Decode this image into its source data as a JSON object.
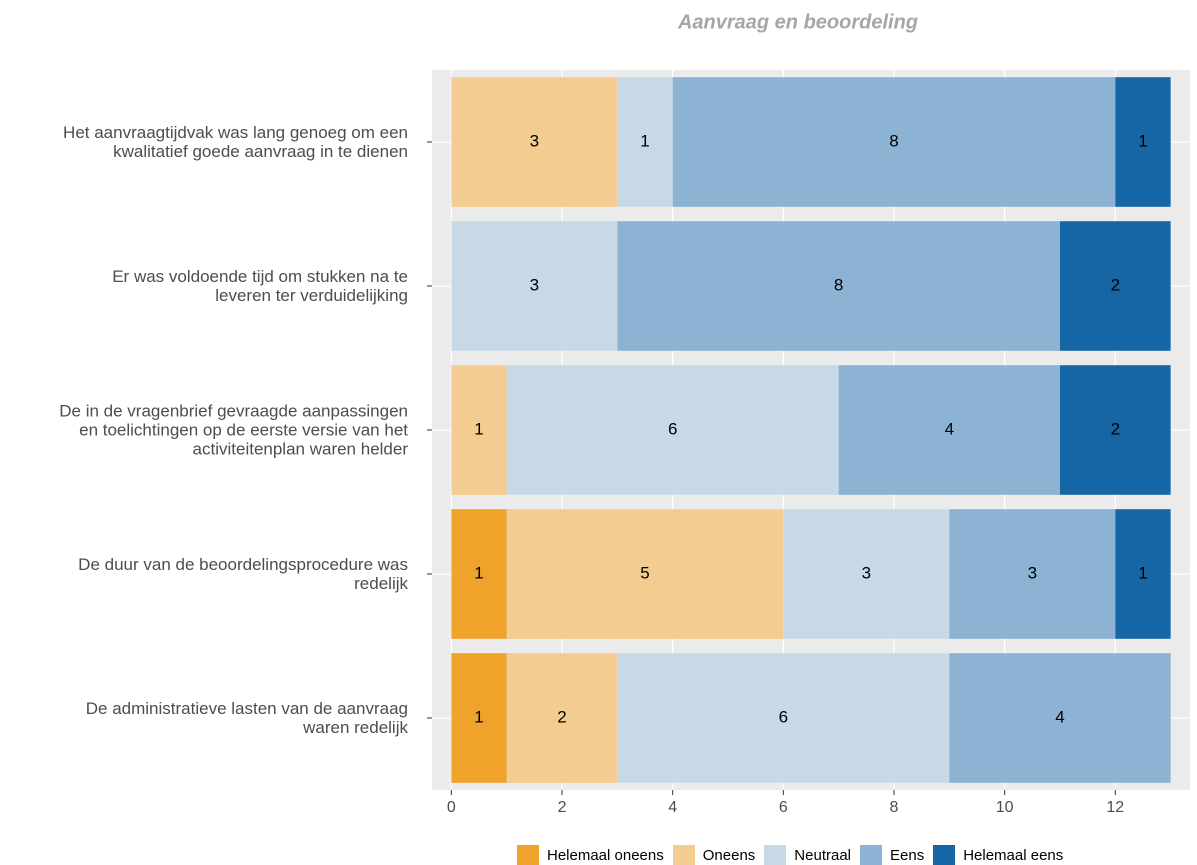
{
  "chart_data": {
    "type": "stacked-bar-horizontal",
    "title": "Aanvraag en beoordeling",
    "categories": [
      "Het aanvraagtijdvak was lang genoeg om een\nkwalitatief goede aanvraag in te dienen",
      "Er was voldoende tijd om stukken na te\nleveren ter verduidelijking",
      "De in de vragenbrief gevraagde aanpassingen\nen toelichtingen op de eerste versie van het\nactiviteitenplan waren helder",
      "De duur van de beoordelingsprocedure was\nredelijk",
      "De administratieve lasten van de aanvraag\nwaren redelijk"
    ],
    "series": [
      {
        "name": "Helemaal oneens",
        "color": "#f0a32a",
        "values": [
          null,
          null,
          null,
          1,
          1
        ]
      },
      {
        "name": "Oneens",
        "color": "#f2cc90",
        "values": [
          3,
          null,
          1,
          5,
          2
        ]
      },
      {
        "name": "Neutraal",
        "color": "#c8d9e6",
        "values": [
          1,
          3,
          6,
          3,
          6
        ]
      },
      {
        "name": "Eens",
        "color": "#8db3d4",
        "values": [
          8,
          8,
          4,
          3,
          4
        ]
      },
      {
        "name": "Helemaal eens",
        "color": "#1666a6",
        "values": [
          1,
          2,
          2,
          1,
          null
        ]
      }
    ],
    "xlim": [
      -0.35,
      13.35
    ],
    "xticks": [
      0,
      2,
      4,
      6,
      8,
      10,
      12
    ],
    "grid": true,
    "legend": "bottom"
  }
}
